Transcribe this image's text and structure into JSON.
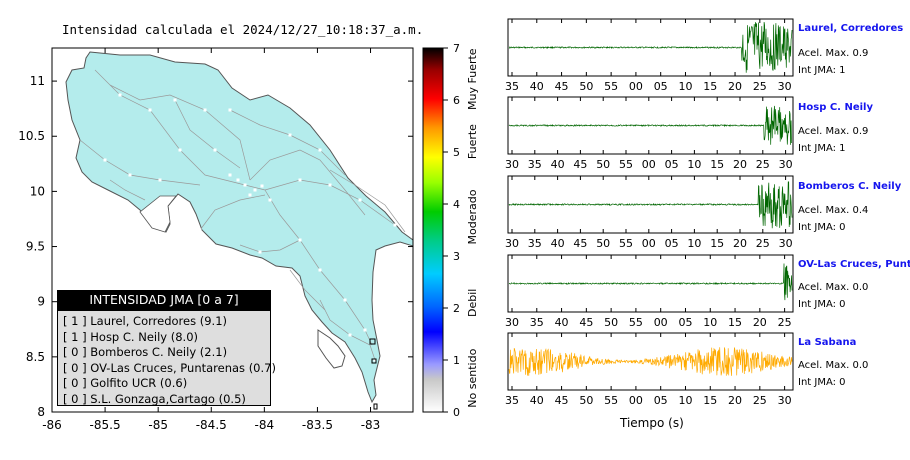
{
  "map": {
    "title": "Intensidad calculada el 2024/12/27_10:18:37_a.m.",
    "x_ticks": [
      -86,
      -85.5,
      -85,
      -84.5,
      -84,
      -83.5,
      -83
    ],
    "y_ticks": [
      8,
      8.5,
      9,
      9.5,
      10,
      10.5,
      11
    ],
    "x_tick_labels": [
      "-86",
      "-85.5",
      "-85",
      "-84.5",
      "-84",
      "-83.5",
      "-83"
    ],
    "y_tick_labels": [
      "8",
      "8.5",
      "9",
      "9.5",
      "10",
      "10.5",
      "11"
    ],
    "xlim": [
      -86,
      -82.6
    ],
    "ylim": [
      8,
      11.3
    ],
    "land_color": "#b4ecec"
  },
  "colorbar": {
    "ticks": [
      "0",
      "1",
      "2",
      "3",
      "4",
      "5",
      "6",
      "7"
    ],
    "categories": [
      "No sentido",
      "Debil",
      "Moderado",
      "Fuerte",
      "Muy Fuerte"
    ]
  },
  "legend": {
    "title": "INTENSIDAD JMA [0 a 7]",
    "items": [
      "[ 1 ] Laurel, Corredores (9.1)",
      "[ 1 ] Hosp C. Neily (8.0)",
      "[ 0 ] Bomberos C. Neily (2.1)",
      "[ 0 ] OV-Las Cruces, Puntarenas (0.7)",
      "[ 0 ] Golfito UCR (0.6)",
      "[ 0 ] S.L. Gonzaga,Cartago (0.5)"
    ]
  },
  "stations": [
    {
      "name": "Laurel, Corredores",
      "acel": "Acel. Max. 0.9",
      "jma": "Int JMA: 1",
      "color": "#006600",
      "x_ticks": [
        "35",
        "40",
        "45",
        "50",
        "55",
        "00",
        "05",
        "10",
        "15",
        "20",
        "25",
        "30"
      ],
      "onset": 0.82,
      "amp": 1.0
    },
    {
      "name": "Hosp C. Neily",
      "acel": "Acel. Max. 0.9",
      "jma": "Int JMA: 1",
      "color": "#006600",
      "x_ticks": [
        "30",
        "35",
        "40",
        "45",
        "50",
        "55",
        "00",
        "05",
        "10",
        "15",
        "20",
        "25",
        "30"
      ],
      "onset": 0.9,
      "amp": 0.75
    },
    {
      "name": "Bomberos C. Neily",
      "acel": "Acel. Max. 0.4",
      "jma": "Int JMA: 0",
      "color": "#006600",
      "x_ticks": [
        "30",
        "35",
        "40",
        "45",
        "50",
        "55",
        "00",
        "05",
        "10",
        "15",
        "20",
        "25",
        "30"
      ],
      "onset": 0.88,
      "amp": 0.9
    },
    {
      "name": "OV-Las Cruces, Puntar",
      "acel": "Acel. Max. 0.0",
      "jma": "Int JMA: 0",
      "color": "#006600",
      "x_ticks": [
        "30",
        "35",
        "40",
        "45",
        "50",
        "55",
        "00",
        "05",
        "10",
        "15",
        "20",
        "25"
      ],
      "onset": 0.97,
      "amp": 0.9
    },
    {
      "name": "La Sabana",
      "acel": "Acel. Max. 0.0",
      "jma": "Int JMA: 0",
      "color": "#ffaa00",
      "x_ticks": [
        "35",
        "40",
        "45",
        "50",
        "55",
        "00",
        "05",
        "10",
        "15",
        "20",
        "25",
        "30"
      ],
      "onset": 0.0,
      "amp": 0.55
    }
  ],
  "time_axis_label": "Tiempo (s)"
}
